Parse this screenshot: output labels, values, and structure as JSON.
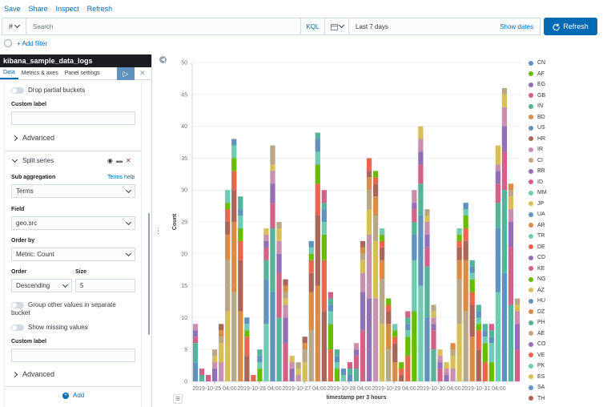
{
  "topmenu": {
    "items": [
      "Save",
      "Share",
      "Inspect",
      "Refresh"
    ]
  },
  "query": {
    "lang_symbol": "#",
    "placeholder": "Search",
    "kql": "KQL",
    "time_range": "Last 7 days",
    "show_dates": "Show dates",
    "refresh_label": "Refresh"
  },
  "filter": {
    "add_filter": "+ Add filter"
  },
  "sidebar": {
    "index_pattern": "kibana_sample_data_logs",
    "tabs": [
      "Data",
      "Metrics & axes",
      "Panel settings"
    ],
    "drop_partial_buckets": "Drop partial buckets",
    "custom_label": "Custom label",
    "advanced": "Advanced",
    "split_series": "Split series",
    "sub_aggregation_label": "Sub aggregation",
    "terms_help": "Terms help",
    "sub_aggregation_value": "Terms",
    "field_label": "Field",
    "field_value": "geo.src",
    "order_by_label": "Order by",
    "order_by_value": "Metric: Count",
    "order_label": "Order",
    "order_value": "Descending",
    "size_label": "Size",
    "size_value": "5",
    "group_other": "Group other values in separate bucket",
    "show_missing": "Show missing values",
    "custom_label_2": "Custom label",
    "advanced_2": "Advanced",
    "add_label": "Add"
  },
  "colors": {
    "accent": "#006bb4",
    "palette": [
      "#6092c0",
      "#54b399",
      "#d36086",
      "#9170b8",
      "#ca8eae",
      "#d6bf57",
      "#b9a888",
      "#da8b45",
      "#aa6556",
      "#e7664c",
      "#68bc00",
      "#6dccb1"
    ]
  },
  "legend": {
    "items": [
      {
        "label": "CN",
        "color": "#6092c0"
      },
      {
        "label": "AF",
        "color": "#68bc00"
      },
      {
        "label": "EG",
        "color": "#9170b8"
      },
      {
        "label": "GB",
        "color": "#d36086"
      },
      {
        "label": "IN",
        "color": "#54b399"
      },
      {
        "label": "BD",
        "color": "#da8b45"
      },
      {
        "label": "US",
        "color": "#6092c0"
      },
      {
        "label": "HR",
        "color": "#aa6556"
      },
      {
        "label": "IR",
        "color": "#ca8eae"
      },
      {
        "label": "CI",
        "color": "#b9a888"
      },
      {
        "label": "BR",
        "color": "#9170b8"
      },
      {
        "label": "ID",
        "color": "#d36086"
      },
      {
        "label": "MM",
        "color": "#6dccb1"
      },
      {
        "label": "JP",
        "color": "#d6bf57"
      },
      {
        "label": "UA",
        "color": "#6092c0"
      },
      {
        "label": "AR",
        "color": "#da8b45"
      },
      {
        "label": "TR",
        "color": "#6dccb1"
      },
      {
        "label": "DE",
        "color": "#e7664c"
      },
      {
        "label": "CD",
        "color": "#9170b8"
      },
      {
        "label": "KE",
        "color": "#d36086"
      },
      {
        "label": "NG",
        "color": "#68bc00"
      },
      {
        "label": "AZ",
        "color": "#d6bf57"
      },
      {
        "label": "HU",
        "color": "#6092c0"
      },
      {
        "label": "DZ",
        "color": "#da8b45"
      },
      {
        "label": "PH",
        "color": "#54b399"
      },
      {
        "label": "AE",
        "color": "#b9a888"
      },
      {
        "label": "CO",
        "color": "#9170b8"
      },
      {
        "label": "VE",
        "color": "#e7664c"
      },
      {
        "label": "PK",
        "color": "#6dccb1"
      },
      {
        "label": "ES",
        "color": "#d6bf57"
      },
      {
        "label": "SA",
        "color": "#6092c0"
      },
      {
        "label": "TH",
        "color": "#aa6556"
      }
    ]
  },
  "chart_data": {
    "type": "bar",
    "stacked": true,
    "title": "",
    "xlabel": "timestamp per 3 hours",
    "ylabel": "Count",
    "ylim": [
      0,
      50
    ],
    "yticks": [
      0,
      5,
      10,
      15,
      20,
      25,
      30,
      35,
      40,
      45,
      50
    ],
    "xtick_labels": [
      "2019-10-25 04:00",
      "2019-10-26 04:00",
      "2019-10-27 04:00",
      "2019-10-28 04:00",
      "2019-10-29 04:00",
      "2019-10-30 04:00",
      "2019-10-31 04:00"
    ],
    "totals": [
      9,
      2,
      1,
      5,
      9,
      30,
      38,
      29,
      10,
      1,
      5,
      24,
      37,
      25,
      16,
      4,
      3,
      7,
      22,
      39,
      30,
      14,
      5,
      2,
      3,
      6,
      22,
      35,
      33,
      24,
      13,
      9,
      3,
      11,
      30,
      40,
      27,
      12,
      5,
      3,
      6,
      24,
      28,
      19,
      12,
      9,
      9,
      37,
      46,
      31,
      13
    ]
  }
}
